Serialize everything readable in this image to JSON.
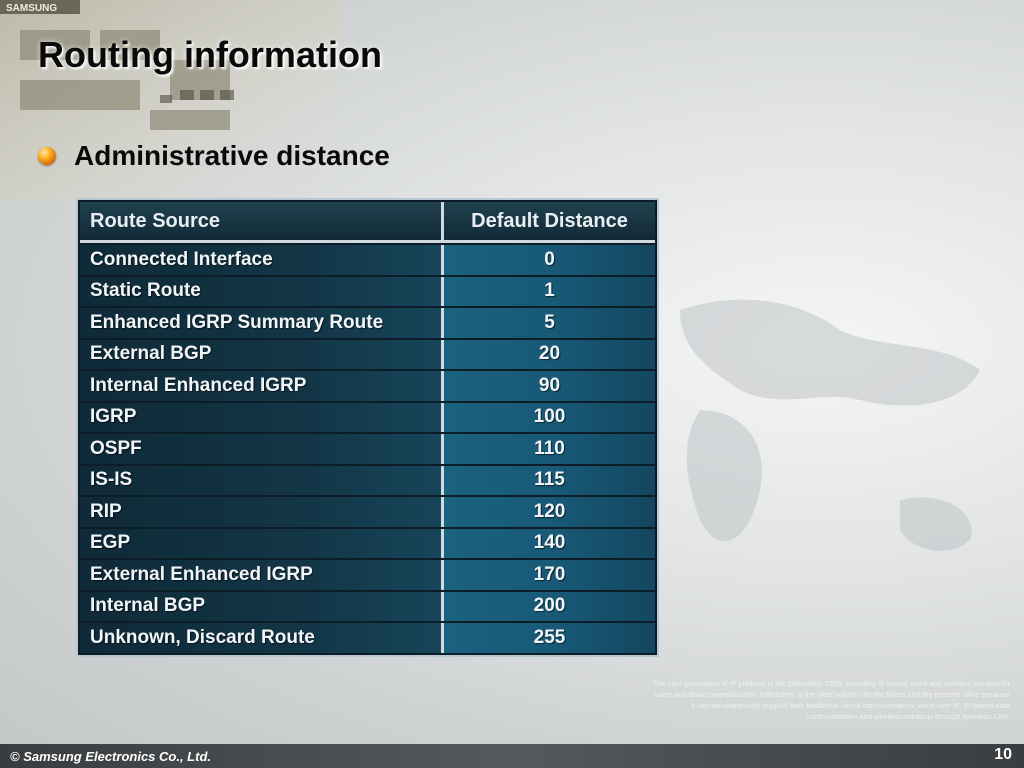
{
  "slide": {
    "title": "Routing information",
    "bullet": "Administrative distance",
    "logo_text": "SAMSUNG",
    "footer": "© Samsung Electronics Co., Ltd.",
    "page_number": "10",
    "fineprint": "The next generation of IP platform is the OfficeServ 7200, providing IP based wired and wireless solution for voice and data communication. OfficeServ is the ideal solution for the future and the present office because it can simultaneously support both traditional circuit communication, voice over IP, IP based data communication and wireless solutions through Wireless LAN."
  },
  "table": {
    "headers": [
      "Route Source",
      "Default Distance"
    ],
    "rows": [
      {
        "source": "Connected Interface",
        "distance": "0"
      },
      {
        "source": "Static Route",
        "distance": "1"
      },
      {
        "source": "Enhanced IGRP Summary Route",
        "distance": "5"
      },
      {
        "source": "External BGP",
        "distance": "20"
      },
      {
        "source": "Internal Enhanced IGRP",
        "distance": "90"
      },
      {
        "source": "IGRP",
        "distance": "100"
      },
      {
        "source": "OSPF",
        "distance": "110"
      },
      {
        "source": "IS-IS",
        "distance": "115"
      },
      {
        "source": "RIP",
        "distance": "120"
      },
      {
        "source": "EGP",
        "distance": "140"
      },
      {
        "source": "External Enhanced IGRP",
        "distance": "170"
      },
      {
        "source": "Internal BGP",
        "distance": "200"
      },
      {
        "source": "Unknown, Discard Route",
        "distance": "255"
      }
    ]
  },
  "colors": {
    "accent_bullet": "#ff9a10",
    "table_bg": "#0c1d28",
    "cell_blue": "#185a77"
  }
}
